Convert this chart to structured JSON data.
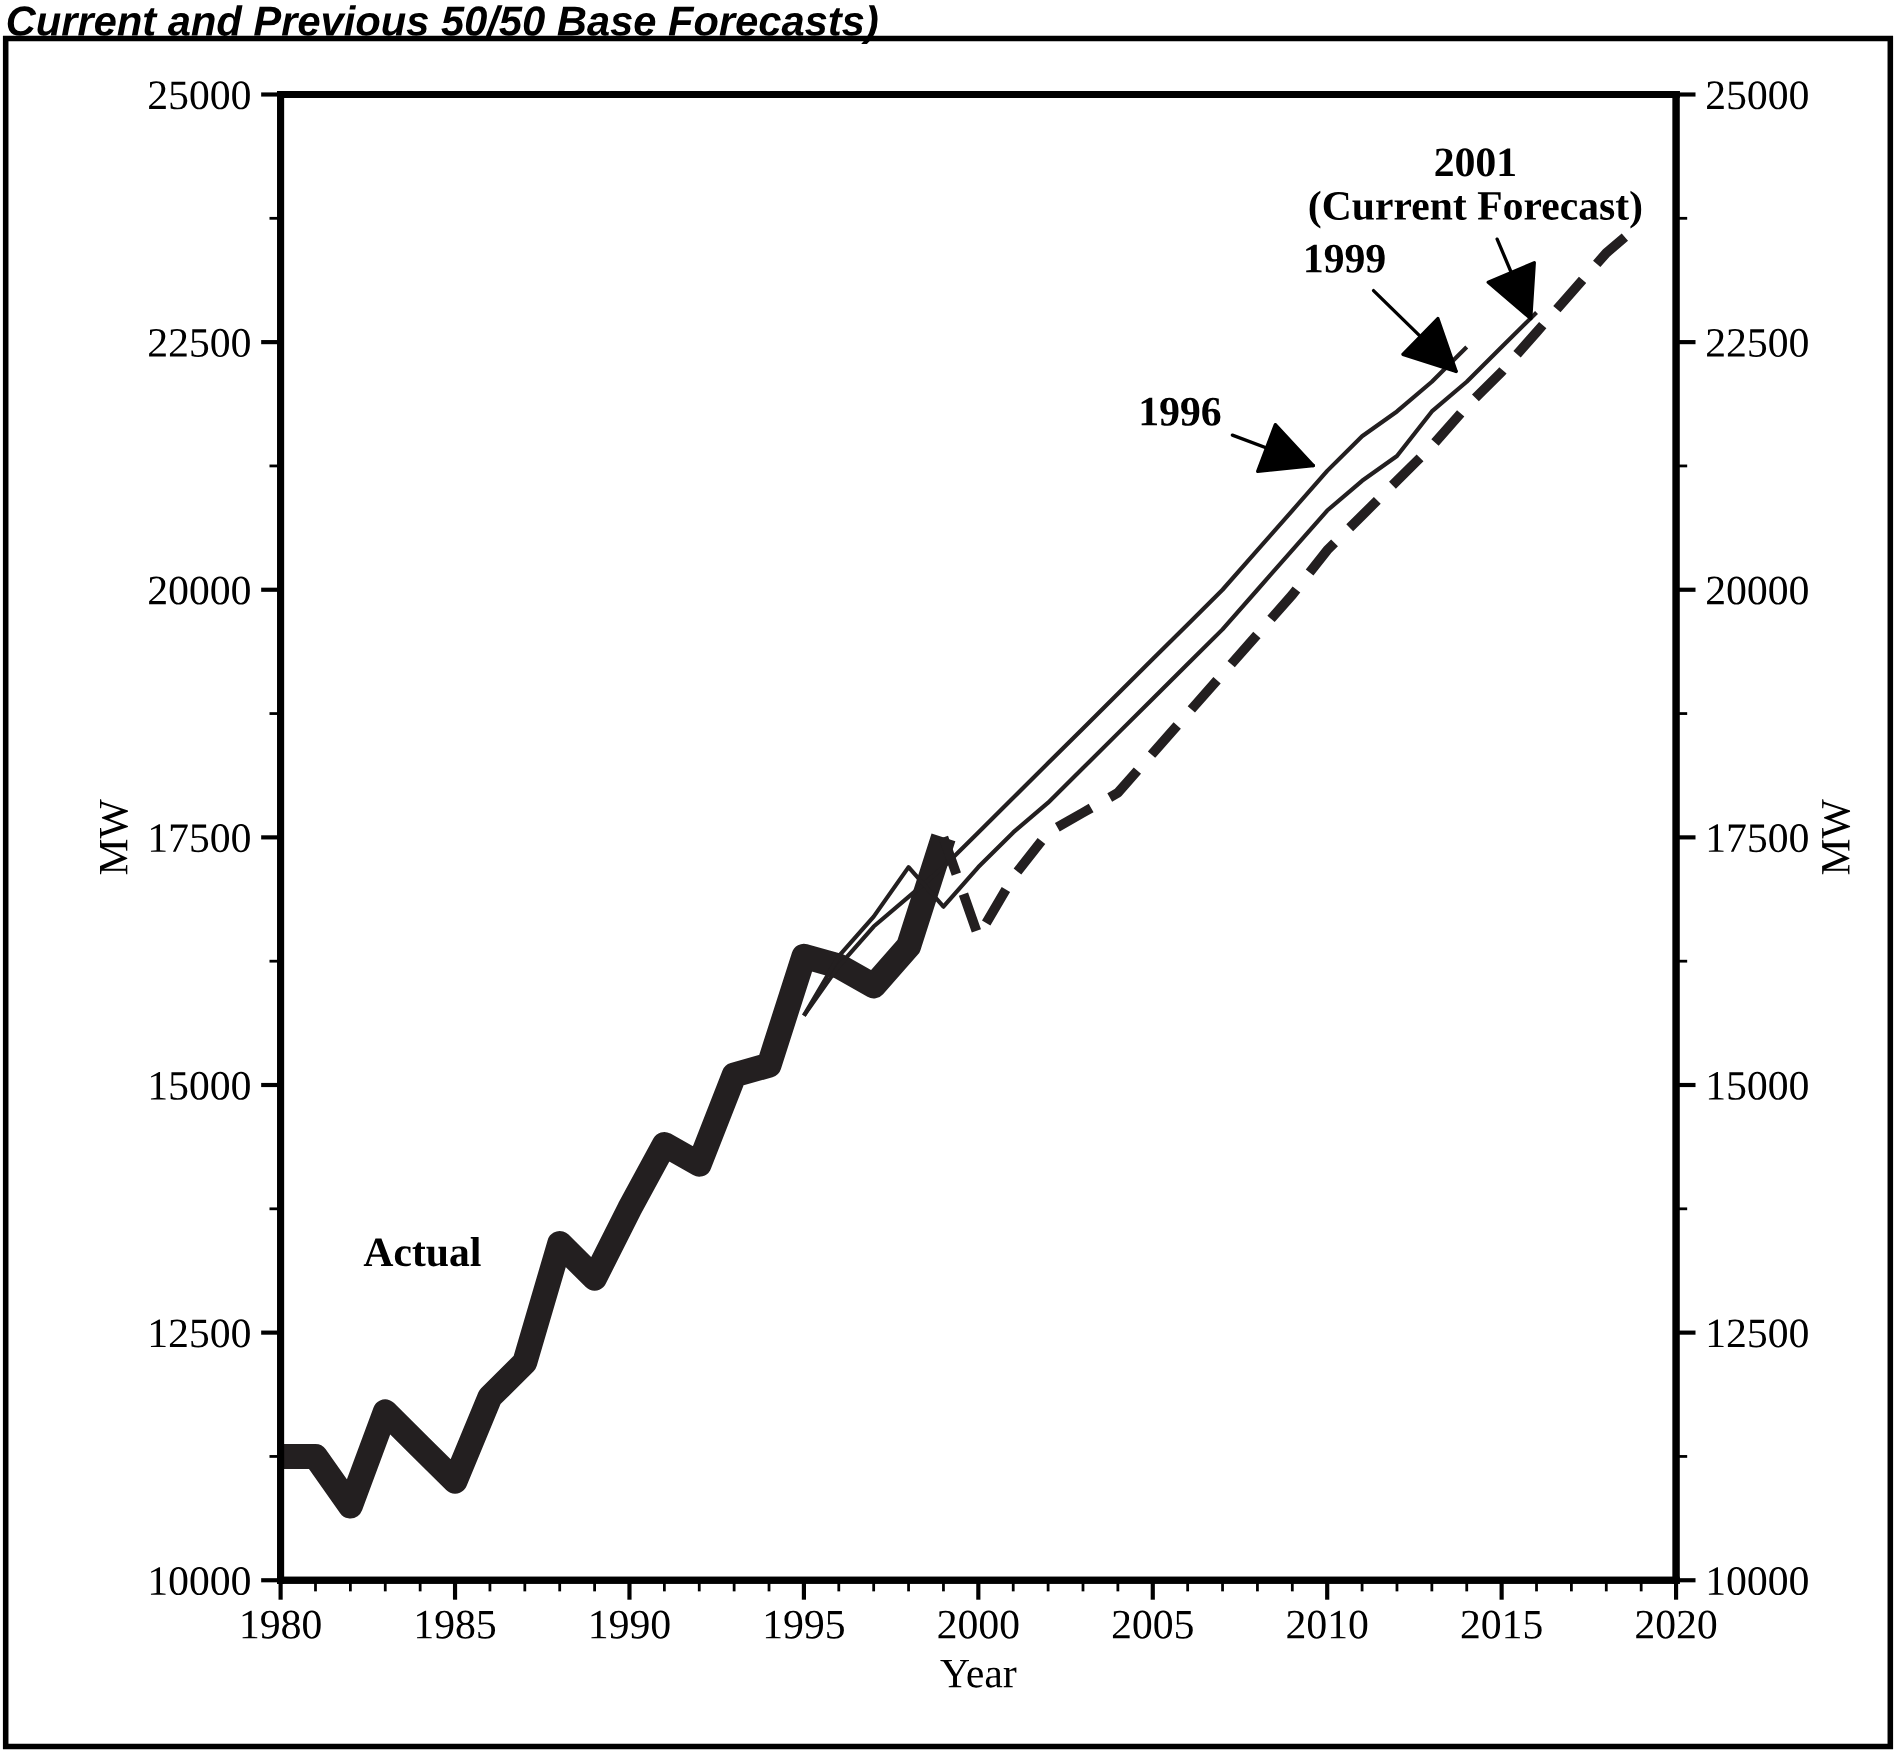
{
  "chart_data": {
    "type": "line",
    "title": "Current and Previous 50/50 Base Forecasts)",
    "xlabel": "Year",
    "ylabel": "MW",
    "y2label": "MW",
    "xlim": [
      1980,
      2020
    ],
    "xticks": [
      1980,
      1985,
      1990,
      1995,
      2000,
      2005,
      2010,
      2015,
      2020
    ],
    "ylim": [
      10000,
      25000
    ],
    "yticks": [
      10000,
      12500,
      15000,
      17500,
      20000,
      22500,
      25000
    ],
    "y2lim": [
      10000,
      25000
    ],
    "y2ticks": [
      10000,
      12500,
      15000,
      17500,
      20000,
      22500,
      25000
    ],
    "grid": false,
    "legend": false,
    "marker": "none",
    "series": [
      {
        "name": "Actual",
        "color": "#231f20",
        "line_style": "solid",
        "x": [
          1980,
          1981,
          1982,
          1983,
          1984,
          1985,
          1986,
          1987,
          1988,
          1989,
          1990,
          1991,
          1992,
          1993,
          1994,
          1995,
          1996,
          1997,
          1998,
          1999
        ],
        "values": [
          11250,
          11250,
          10750,
          11700,
          11350,
          11000,
          11850,
          12200,
          13400,
          13050,
          13750,
          14400,
          14200,
          15100,
          15200,
          16300,
          16200,
          16000,
          16400,
          17500
        ]
      },
      {
        "name": "1996",
        "color": "#231f20",
        "line_style": "solid",
        "x": [
          1995,
          1996,
          1997,
          1998,
          1999,
          2000,
          2001,
          2002,
          2003,
          2004,
          2005,
          2006,
          2007,
          2008,
          2009,
          2010,
          2011,
          2012,
          2013,
          2014
        ],
        "values": [
          15700,
          16200,
          16600,
          16900,
          17200,
          17550,
          17900,
          18250,
          18600,
          18950,
          19300,
          19650,
          20000,
          20400,
          20800,
          21200,
          21550,
          21800,
          22100,
          22450
        ]
      },
      {
        "name": "1999",
        "color": "#231f20",
        "line_style": "solid",
        "x": [
          1995,
          1996,
          1997,
          1998,
          1999,
          2000,
          2001,
          2002,
          2003,
          2004,
          2005,
          2006,
          2007,
          2008,
          2009,
          2010,
          2011,
          2012,
          2013,
          2014,
          2015,
          2016
        ],
        "values": [
          15700,
          16300,
          16700,
          17200,
          16800,
          17200,
          17550,
          17850,
          18200,
          18550,
          18900,
          19250,
          19600,
          20000,
          20400,
          20800,
          21100,
          21350,
          21800,
          22100,
          22450,
          22800
        ]
      },
      {
        "name": "2001\n(Current Forecast)",
        "color": "#231f20",
        "line_style": "dashed",
        "x": [
          1999,
          2000,
          2001,
          2002,
          2003,
          2004,
          2005,
          2006,
          2007,
          2008,
          2009,
          2010,
          2011,
          2012,
          2013,
          2014,
          2015,
          2016,
          2017,
          2018,
          2019
        ],
        "values": [
          17500,
          16500,
          17100,
          17550,
          17750,
          17950,
          18350,
          18750,
          19150,
          19550,
          19950,
          20400,
          20750,
          21100,
          21450,
          21850,
          22200,
          22600,
          23000,
          23400,
          23700
        ]
      }
    ]
  }
}
